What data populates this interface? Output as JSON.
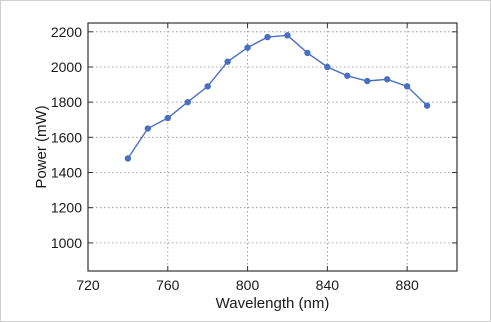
{
  "chart_data": {
    "type": "line",
    "xlabel": "Wavelength (nm)",
    "ylabel": "Power (mW)",
    "xlim": [
      720,
      905
    ],
    "ylim": [
      840,
      2250
    ],
    "xticks": [
      720,
      760,
      800,
      840,
      880
    ],
    "yticks": [
      1000,
      1200,
      1400,
      1600,
      1800,
      2000,
      2200
    ],
    "grid": true,
    "series": [
      {
        "color": "#4a6fc1",
        "x": [
          740,
          750,
          760,
          770,
          780,
          790,
          800,
          810,
          820,
          830,
          840,
          850,
          860,
          870,
          880,
          890
        ],
        "y": [
          1480,
          1650,
          1710,
          1800,
          1890,
          2030,
          2110,
          2170,
          2180,
          2080,
          2000,
          1950,
          1920,
          1930,
          1890,
          1780
        ]
      }
    ]
  }
}
